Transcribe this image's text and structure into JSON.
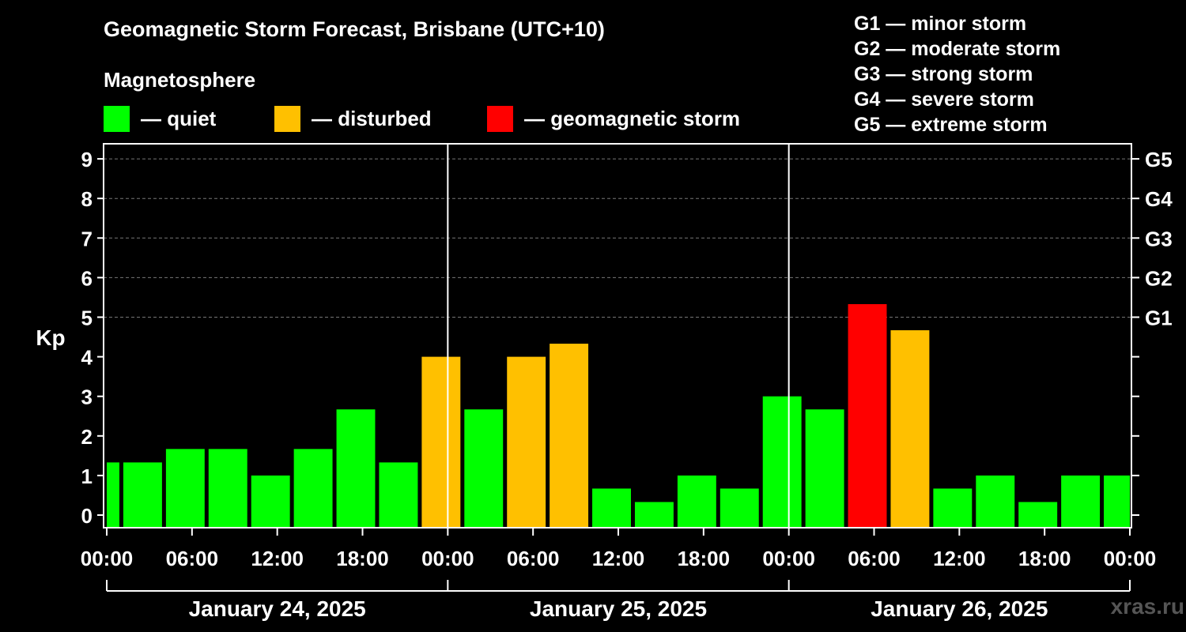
{
  "header": {
    "title": "Geomagnetic Storm Forecast, Brisbane (UTC+10)",
    "subtitle": "Magnetosphere"
  },
  "legend": [
    {
      "label": "— quiet",
      "color": "#00ff00"
    },
    {
      "label": "— disturbed",
      "color": "#ffc000"
    },
    {
      "label": "— geomagnetic storm",
      "color": "#ff0000"
    }
  ],
  "storm_scale": [
    "G1 — minor storm",
    "G2 — moderate storm",
    "G3 — strong storm",
    "G4 — severe storm",
    "G5 — extreme storm"
  ],
  "watermark": "xras.ru",
  "chart_data": {
    "type": "bar",
    "title": "Geomagnetic Storm Forecast, Brisbane (UTC+10)",
    "ylabel": "Kp",
    "ylim": [
      0,
      9
    ],
    "yticks": [
      "0",
      "1",
      "2",
      "3",
      "4",
      "5",
      "6",
      "7",
      "8",
      "9"
    ],
    "gscale_ticks": [
      {
        "kp": 5,
        "label": "G1"
      },
      {
        "kp": 6,
        "label": "G2"
      },
      {
        "kp": 7,
        "label": "G3"
      },
      {
        "kp": 8,
        "label": "G4"
      },
      {
        "kp": 9,
        "label": "G5"
      }
    ],
    "xticks": [
      "00:00",
      "06:00",
      "12:00",
      "18:00",
      "00:00",
      "06:00",
      "12:00",
      "18:00",
      "00:00",
      "06:00",
      "12:00",
      "18:00",
      "00:00"
    ],
    "days": [
      "January 24, 2025",
      "January 25, 2025",
      "January 26, 2025"
    ],
    "hours_total": 72,
    "bar_interval_hours": 3,
    "first_bar_start_hour": 1,
    "colors": {
      "quiet": "#00ff00",
      "disturbed": "#ffc000",
      "storm": "#ff0000"
    },
    "series": [
      {
        "name": "Kp",
        "values": [
          1.33,
          1.33,
          1.67,
          1.67,
          1.0,
          1.67,
          2.67,
          1.33,
          4.0,
          2.67,
          4.0,
          4.33,
          0.67,
          0.33,
          1.0,
          0.67,
          3.0,
          2.67,
          5.33,
          4.67,
          0.67,
          1.0,
          0.33,
          1.0,
          1.0
        ]
      }
    ]
  }
}
